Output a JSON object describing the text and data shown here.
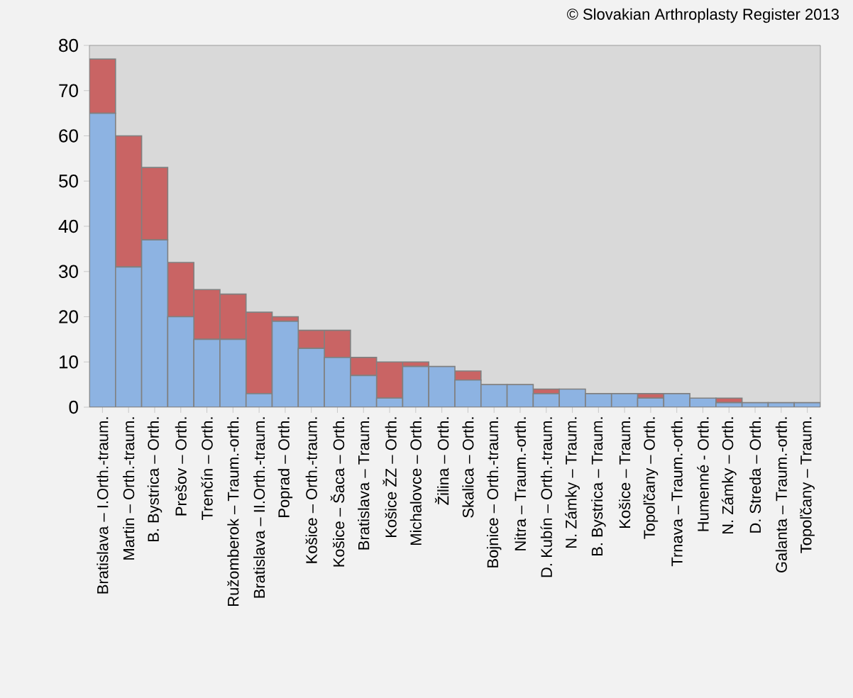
{
  "chart_data": {
    "type": "bar",
    "stacked": true,
    "categories": [
      "Bratislava – I.Orth.-traum.",
      "Martin – Orth.-traum.",
      "B. Bystrica – Orth.",
      "Prešov – Orth.",
      "Trenčín – Orth.",
      "Ružomberok – Traum.-orth.",
      "Bratislava – II.Orth.-traum.",
      "Poprad – Orth.",
      "Košice – Orth.-traum.",
      "Košice – Šaca – Orth.",
      "Bratislava – Traum.",
      "Košice ŽZ – Orth.",
      "Michalovce – Orth.",
      "Žilina – Orth.",
      "Skalica – Orth.",
      "Bojnice – Orth.-traum.",
      "Nitra – Traum.-orth.",
      "D. Kubín – Orth.-traum.",
      "N. Zámky – Traum.",
      "B. Bystrica – Traum.",
      "Košice – Traum.",
      "Topoľčany – Orth.",
      "Trnava – Traum.-orth.",
      "Humenné - Orth.",
      "N. Zámky – Orth.",
      "D. Streda – Orth.",
      "Galanta – Traum.-orth.",
      "Topoľčany – Traum."
    ],
    "series": [
      {
        "color": "#8db3e2",
        "values": [
          65,
          31,
          37,
          20,
          15,
          15,
          3,
          19,
          13,
          11,
          7,
          2,
          9,
          9,
          6,
          5,
          5,
          3,
          4,
          3,
          3,
          2,
          3,
          2,
          1,
          1,
          1,
          1
        ]
      },
      {
        "color": "#c96464",
        "values": [
          12,
          29,
          16,
          12,
          11,
          10,
          18,
          1,
          4,
          6,
          4,
          8,
          1,
          0,
          2,
          0,
          0,
          1,
          0,
          0,
          0,
          1,
          0,
          0,
          1,
          0,
          0,
          0
        ]
      }
    ],
    "ylim": [
      0,
      80
    ],
    "yticks": [
      0,
      10,
      20,
      30,
      40,
      50,
      60,
      70,
      80
    ],
    "annotations": [
      "© Slovakian Arthroplasty Register 2013"
    ]
  }
}
